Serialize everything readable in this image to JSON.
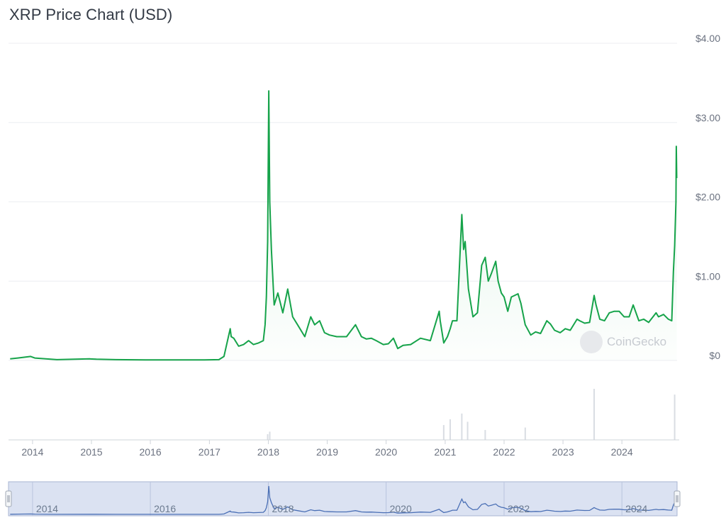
{
  "title": "XRP Price Chart (USD)",
  "watermark": "CoinGecko",
  "colors": {
    "price_line": "#16a34a",
    "price_fill": "#16a34a",
    "volume": "#d9dde3",
    "navigator_line": "#4a6fb5",
    "navigator_bg": "#dbe2f2"
  },
  "chart_data": {
    "type": "line",
    "title": "XRP Price Chart (USD)",
    "xlabel": "",
    "ylabel": "",
    "ylim": [
      0,
      4
    ],
    "y_ticks": [
      "$0",
      "$1.00",
      "$2.00",
      "$3.00",
      "$4.00"
    ],
    "x_ticks": [
      "2014",
      "2015",
      "2016",
      "2017",
      "2018",
      "2019",
      "2020",
      "2021",
      "2022",
      "2023",
      "2024"
    ],
    "navigator_ticks": [
      "2014",
      "2016",
      "2018",
      "2020",
      "2022",
      "2024"
    ],
    "grid": true,
    "series": [
      {
        "x": [
          "2013-08-15",
          "2013-10-01",
          "2013-12-20",
          "2014-01-15",
          "2014-06-01",
          "2014-12-20",
          "2015-02-01",
          "2015-06-01",
          "2015-12-01",
          "2016-06-01",
          "2016-12-01",
          "2017-03-01",
          "2017-04-01",
          "2017-05-10",
          "2017-05-16",
          "2017-06-01",
          "2017-07-01",
          "2017-08-01",
          "2017-09-01",
          "2017-10-01",
          "2017-11-01",
          "2017-12-01",
          "2017-12-12",
          "2017-12-20",
          "2017-12-28",
          "2018-01-04",
          "2018-01-10",
          "2018-01-20",
          "2018-02-06",
          "2018-03-01",
          "2018-04-01",
          "2018-05-01",
          "2018-06-01",
          "2018-07-01",
          "2018-08-15",
          "2018-09-21",
          "2018-10-15",
          "2018-11-15",
          "2018-12-15",
          "2019-01-15",
          "2019-03-01",
          "2019-05-01",
          "2019-06-25",
          "2019-08-01",
          "2019-09-01",
          "2019-10-01",
          "2019-11-01",
          "2019-12-15",
          "2020-01-15",
          "2020-02-15",
          "2020-03-13",
          "2020-04-15",
          "2020-06-01",
          "2020-08-01",
          "2020-10-01",
          "2020-11-25",
          "2020-12-01",
          "2020-12-23",
          "2021-01-15",
          "2021-02-01",
          "2021-02-15",
          "2021-03-15",
          "2021-04-14",
          "2021-04-25",
          "2021-05-05",
          "2021-05-25",
          "2021-06-22",
          "2021-07-20",
          "2021-08-15",
          "2021-09-06",
          "2021-09-25",
          "2021-10-15",
          "2021-11-10",
          "2021-11-25",
          "2021-12-15",
          "2022-01-01",
          "2022-01-24",
          "2022-02-15",
          "2022-03-28",
          "2022-04-15",
          "2022-05-12",
          "2022-06-15",
          "2022-07-15",
          "2022-08-15",
          "2022-09-23",
          "2022-10-15",
          "2022-11-10",
          "2022-12-15",
          "2023-01-15",
          "2023-02-15",
          "2023-03-29",
          "2023-04-15",
          "2023-05-15",
          "2023-06-15",
          "2023-07-13",
          "2023-07-25",
          "2023-08-17",
          "2023-09-15",
          "2023-10-15",
          "2023-11-15",
          "2023-12-15",
          "2024-01-15",
          "2024-02-15",
          "2024-03-11",
          "2024-04-15",
          "2024-05-15",
          "2024-06-15",
          "2024-07-31",
          "2024-08-15",
          "2024-09-15",
          "2024-10-15",
          "2024-11-05",
          "2024-11-15",
          "2024-11-23",
          "2024-12-01",
          "2024-12-03",
          "2024-12-06"
        ],
        "y": [
          0.02,
          0.03,
          0.05,
          0.03,
          0.01,
          0.02,
          0.015,
          0.01,
          0.006,
          0.006,
          0.007,
          0.01,
          0.05,
          0.4,
          0.3,
          0.28,
          0.18,
          0.2,
          0.25,
          0.2,
          0.22,
          0.25,
          0.45,
          0.8,
          1.5,
          3.4,
          2.0,
          1.4,
          0.7,
          0.85,
          0.6,
          0.9,
          0.55,
          0.45,
          0.3,
          0.55,
          0.45,
          0.5,
          0.35,
          0.32,
          0.3,
          0.3,
          0.45,
          0.3,
          0.27,
          0.28,
          0.25,
          0.2,
          0.21,
          0.28,
          0.15,
          0.19,
          0.2,
          0.28,
          0.25,
          0.62,
          0.5,
          0.22,
          0.3,
          0.4,
          0.5,
          0.5,
          1.84,
          1.4,
          1.5,
          0.9,
          0.55,
          0.6,
          1.2,
          1.3,
          1.0,
          1.1,
          1.25,
          1.0,
          0.85,
          0.8,
          0.62,
          0.8,
          0.84,
          0.72,
          0.45,
          0.32,
          0.36,
          0.34,
          0.5,
          0.46,
          0.38,
          0.35,
          0.4,
          0.38,
          0.52,
          0.5,
          0.47,
          0.48,
          0.82,
          0.7,
          0.52,
          0.5,
          0.6,
          0.62,
          0.62,
          0.55,
          0.55,
          0.7,
          0.5,
          0.52,
          0.48,
          0.6,
          0.55,
          0.58,
          0.52,
          0.5,
          1.12,
          1.45,
          2.0,
          2.7,
          2.3
        ]
      }
    ],
    "volume_peaks": [
      {
        "x": "2017-12-28",
        "value": 0.07
      },
      {
        "x": "2018-01-10",
        "value": 0.1
      },
      {
        "x": "2020-12-23",
        "value": 0.18
      },
      {
        "x": "2021-02-01",
        "value": 0.25
      },
      {
        "x": "2021-04-14",
        "value": 0.32
      },
      {
        "x": "2021-05-20",
        "value": 0.22
      },
      {
        "x": "2021-09-06",
        "value": 0.12
      },
      {
        "x": "2022-05-12",
        "value": 0.15
      },
      {
        "x": "2023-07-13",
        "value": 0.62
      },
      {
        "x": "2024-11-23",
        "value": 0.55
      }
    ]
  }
}
